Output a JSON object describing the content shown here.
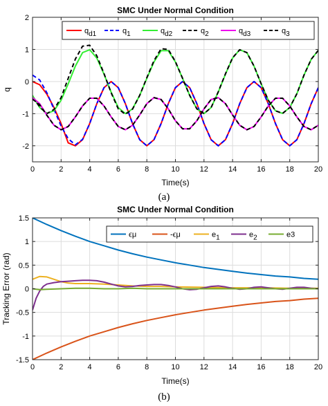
{
  "chart_data": [
    {
      "type": "line",
      "caption": "(a)",
      "title": "SMC Under Normal Condition",
      "xlabel": "Time(s)",
      "ylabel": "q",
      "xlim": [
        0,
        20
      ],
      "ylim": [
        -2.5,
        2
      ],
      "xticks": [
        0,
        2,
        4,
        6,
        8,
        10,
        12,
        14,
        16,
        18,
        20
      ],
      "yticks": [
        -2,
        -1,
        0,
        1,
        2
      ],
      "grid": true,
      "legend_position": "top, single row",
      "series": [
        {
          "name": "q",
          "subscript": "d1",
          "color": "#ff0000",
          "style": "solid",
          "x": [
            0,
            0.5,
            1,
            1.5,
            2,
            2.5,
            3,
            3.5,
            4,
            4.5,
            5,
            5.5,
            6,
            6.5,
            7,
            7.5,
            8,
            8.5,
            9,
            9.5,
            10,
            10.5,
            11,
            11.5,
            12,
            12.5,
            13,
            13.5,
            14,
            14.5,
            15,
            15.5,
            16,
            16.5,
            17,
            17.5,
            18,
            18.5,
            19,
            19.5,
            20
          ],
          "y": [
            0,
            -0.1,
            -0.39,
            -0.81,
            -1.31,
            -1.91,
            -2.0,
            -1.81,
            -1.31,
            -0.69,
            -0.19,
            0.0,
            -0.19,
            -0.69,
            -1.31,
            -1.81,
            -2.0,
            -1.81,
            -1.31,
            -0.69,
            -0.19,
            0.0,
            -0.19,
            -0.69,
            -1.31,
            -1.81,
            -2.0,
            -1.81,
            -1.31,
            -0.69,
            -0.19,
            0.0,
            -0.19,
            -0.69,
            -1.31,
            -1.81,
            -2.0,
            -1.81,
            -1.31,
            -0.69,
            -0.19
          ]
        },
        {
          "name": "q",
          "subscript": "1",
          "color": "#0000ff",
          "style": "dashed",
          "x": [
            0,
            0.5,
            1,
            1.5,
            2,
            2.5,
            3,
            3.5,
            4,
            4.5,
            5,
            5.5,
            6,
            6.5,
            7,
            7.5,
            8,
            8.5,
            9,
            9.5,
            10,
            10.5,
            11,
            11.5,
            12,
            12.5,
            13,
            13.5,
            14,
            14.5,
            15,
            15.5,
            16,
            16.5,
            17,
            17.5,
            18,
            18.5,
            19,
            19.5,
            20
          ],
          "y": [
            0.2,
            0.05,
            -0.35,
            -0.86,
            -1.39,
            -1.78,
            -1.97,
            -1.8,
            -1.31,
            -0.69,
            -0.19,
            0.0,
            -0.19,
            -0.69,
            -1.31,
            -1.81,
            -2.0,
            -1.81,
            -1.31,
            -0.69,
            -0.19,
            0.0,
            -0.19,
            -0.69,
            -1.31,
            -1.81,
            -2.0,
            -1.81,
            -1.31,
            -0.69,
            -0.19,
            0.0,
            -0.19,
            -0.69,
            -1.31,
            -1.81,
            -2.0,
            -1.81,
            -1.31,
            -0.69,
            -0.19
          ]
        },
        {
          "name": "q",
          "subscript": "d2",
          "color": "#33ee33",
          "style": "solid",
          "x": [
            0,
            0.5,
            1,
            1.5,
            2,
            2.5,
            3,
            3.5,
            4,
            4.5,
            5,
            5.5,
            6,
            6.5,
            7,
            7.5,
            8,
            8.5,
            9,
            9.5,
            10,
            10.5,
            11,
            11.5,
            12,
            12.5,
            13,
            13.5,
            14,
            14.5,
            15,
            15.5,
            16,
            16.5,
            17,
            17.5,
            18,
            18.5,
            19,
            19.5,
            20
          ],
          "y": [
            -0.43,
            -0.81,
            -0.99,
            -0.91,
            -0.58,
            -0.07,
            0.48,
            0.9,
            0.99,
            0.73,
            0.23,
            -0.33,
            -0.81,
            -1.0,
            -0.85,
            -0.43,
            0.1,
            0.61,
            0.96,
            0.96,
            0.61,
            0.1,
            -0.43,
            -0.85,
            -1.0,
            -0.81,
            -0.33,
            0.23,
            0.73,
            0.99,
            0.9,
            0.48,
            -0.07,
            -0.58,
            -0.91,
            -0.99,
            -0.81,
            -0.38,
            0.2,
            0.69,
            0.97
          ]
        },
        {
          "name": "q",
          "subscript": "2",
          "color": "#000000",
          "style": "dashed",
          "x": [
            0,
            0.5,
            1,
            1.5,
            2,
            2.5,
            3,
            3.5,
            4,
            4.5,
            5,
            5.5,
            6,
            6.5,
            7,
            7.5,
            8,
            8.5,
            9,
            9.5,
            10,
            10.5,
            11,
            11.5,
            12,
            12.5,
            13,
            13.5,
            14,
            14.5,
            15,
            15.5,
            16,
            16.5,
            17,
            17.5,
            18,
            18.5,
            19,
            19.5,
            20
          ],
          "y": [
            -0.5,
            -0.78,
            -1.0,
            -0.87,
            -0.5,
            0.1,
            0.7,
            1.1,
            1.13,
            0.8,
            0.25,
            -0.35,
            -0.85,
            -1.02,
            -0.86,
            -0.43,
            0.12,
            0.65,
            1.02,
            1.0,
            0.62,
            0.1,
            -0.43,
            -0.85,
            -1.0,
            -0.81,
            -0.32,
            0.24,
            0.74,
            0.99,
            0.9,
            0.48,
            -0.07,
            -0.58,
            -0.91,
            -0.99,
            -0.81,
            -0.38,
            0.2,
            0.69,
            0.97
          ]
        },
        {
          "name": "q",
          "subscript": "d3",
          "color": "#ee00ee",
          "style": "solid",
          "x": [
            0,
            0.5,
            1,
            1.5,
            2,
            2.5,
            3,
            3.5,
            4,
            4.5,
            5,
            5.5,
            6,
            6.5,
            7,
            7.5,
            8,
            8.5,
            9,
            9.5,
            10,
            10.5,
            11,
            11.5,
            12,
            12.5,
            13,
            13.5,
            14,
            14.5,
            15,
            15.5,
            16,
            16.5,
            17,
            17.5,
            18,
            18.5,
            19,
            19.5,
            20
          ],
          "y": [
            -0.5,
            -0.69,
            -1.04,
            -1.36,
            -1.5,
            -1.4,
            -1.1,
            -0.76,
            -0.52,
            -0.52,
            -0.76,
            -1.1,
            -1.4,
            -1.5,
            -1.36,
            -1.04,
            -0.69,
            -0.5,
            -0.56,
            -0.85,
            -1.22,
            -1.47,
            -1.47,
            -1.22,
            -0.85,
            -0.56,
            -0.5,
            -0.69,
            -1.04,
            -1.36,
            -1.5,
            -1.4,
            -1.1,
            -0.76,
            -0.52,
            -0.52,
            -0.76,
            -1.1,
            -1.4,
            -1.5,
            -1.36
          ]
        },
        {
          "name": "q",
          "subscript": "3",
          "color": "#000000",
          "style": "dashed",
          "x": [
            0,
            0.5,
            1,
            1.5,
            2,
            2.5,
            3,
            3.5,
            4,
            4.5,
            5,
            5.5,
            6,
            6.5,
            7,
            7.5,
            8,
            8.5,
            9,
            9.5,
            10,
            10.5,
            11,
            11.5,
            12,
            12.5,
            13,
            13.5,
            14,
            14.5,
            15,
            15.5,
            16,
            16.5,
            17,
            17.5,
            18,
            18.5,
            19,
            19.5,
            20
          ],
          "y": [
            -0.55,
            -0.72,
            -1.05,
            -1.36,
            -1.5,
            -1.4,
            -1.1,
            -0.76,
            -0.52,
            -0.52,
            -0.76,
            -1.1,
            -1.4,
            -1.5,
            -1.36,
            -1.04,
            -0.69,
            -0.5,
            -0.56,
            -0.85,
            -1.22,
            -1.47,
            -1.47,
            -1.22,
            -0.85,
            -0.56,
            -0.5,
            -0.69,
            -1.04,
            -1.36,
            -1.5,
            -1.4,
            -1.1,
            -0.76,
            -0.52,
            -0.52,
            -0.76,
            -1.1,
            -1.4,
            -1.5,
            -1.36
          ]
        }
      ]
    },
    {
      "type": "line",
      "caption": "(b)",
      "title": "SMC Under Normal Condition",
      "xlabel": "Time(s)",
      "ylabel": "Tracking Error (rad)",
      "xlim": [
        0,
        20
      ],
      "ylim": [
        -1.5,
        1.5
      ],
      "xticks": [
        0,
        2,
        4,
        6,
        8,
        10,
        12,
        14,
        16,
        18,
        20
      ],
      "yticks": [
        -1.5,
        -1,
        -0.5,
        0,
        0.5,
        1,
        1.5
      ],
      "ytick_labels": [
        "-1.5",
        "-1",
        "-0.5",
        "0",
        "0.5",
        "1",
        "1.5"
      ],
      "grid": true,
      "legend_position": "top-right, single row",
      "series": [
        {
          "name": "ϵμ",
          "subscript": "",
          "color": "#0072bd",
          "style": "solid",
          "x": [
            0,
            1,
            2,
            3,
            4,
            5,
            6,
            7,
            8,
            9,
            10,
            11,
            12,
            13,
            14,
            15,
            16,
            17,
            18,
            19,
            20
          ],
          "y": [
            1.5,
            1.36,
            1.23,
            1.11,
            1.0,
            0.91,
            0.82,
            0.74,
            0.67,
            0.61,
            0.55,
            0.5,
            0.45,
            0.41,
            0.37,
            0.33,
            0.3,
            0.27,
            0.25,
            0.22,
            0.2
          ]
        },
        {
          "name": "-ϵμ",
          "subscript": "",
          "color": "#d95319",
          "style": "solid",
          "x": [
            0,
            1,
            2,
            3,
            4,
            5,
            6,
            7,
            8,
            9,
            10,
            11,
            12,
            13,
            14,
            15,
            16,
            17,
            18,
            19,
            20
          ],
          "y": [
            -1.5,
            -1.36,
            -1.23,
            -1.11,
            -1.0,
            -0.91,
            -0.82,
            -0.74,
            -0.67,
            -0.61,
            -0.55,
            -0.5,
            -0.45,
            -0.41,
            -0.37,
            -0.33,
            -0.3,
            -0.27,
            -0.25,
            -0.22,
            -0.2
          ]
        },
        {
          "name": "e",
          "subscript": "1",
          "color": "#edb120",
          "style": "solid",
          "x": [
            0,
            0.5,
            1,
            1.5,
            2,
            2.5,
            3,
            4,
            5,
            6,
            7,
            8,
            9,
            10,
            12,
            14,
            16,
            18,
            20
          ],
          "y": [
            0.2,
            0.26,
            0.25,
            0.2,
            0.15,
            0.12,
            0.11,
            0.11,
            0.1,
            0.08,
            0.06,
            0.05,
            0.05,
            0.04,
            0.03,
            0.02,
            0.02,
            0.01,
            0.01
          ]
        },
        {
          "name": "e",
          "subscript": "2",
          "color": "#7e2f8e",
          "style": "solid",
          "x": [
            0,
            0.25,
            0.5,
            0.75,
            1,
            1.5,
            2,
            2.5,
            3,
            3.5,
            4,
            4.5,
            5,
            5.5,
            6,
            6.5,
            7,
            7.5,
            8,
            8.5,
            9,
            9.5,
            10,
            10.5,
            11,
            11.5,
            12,
            12.5,
            13,
            13.5,
            14,
            14.5,
            15,
            15.5,
            16,
            16.5,
            17,
            17.5,
            18,
            18.5,
            19,
            19.5,
            20
          ],
          "y": [
            -0.45,
            -0.2,
            -0.05,
            0.05,
            0.1,
            0.13,
            0.15,
            0.16,
            0.17,
            0.18,
            0.18,
            0.17,
            0.14,
            0.1,
            0.06,
            0.04,
            0.05,
            0.07,
            0.08,
            0.09,
            0.09,
            0.07,
            0.04,
            0.0,
            -0.02,
            -0.01,
            0.02,
            0.05,
            0.06,
            0.04,
            0.01,
            -0.01,
            0.0,
            0.03,
            0.04,
            0.02,
            0.0,
            -0.01,
            0.01,
            0.03,
            0.03,
            0.01,
            0.0
          ]
        },
        {
          "name": "e3",
          "subscript": "",
          "color": "#77ac30",
          "style": "solid",
          "x": [
            0,
            0.5,
            1,
            2,
            3,
            4,
            5,
            6,
            7,
            8,
            9,
            10,
            11,
            12,
            13,
            14,
            15,
            16,
            17,
            18,
            19,
            20
          ],
          "y": [
            0.0,
            -0.02,
            -0.01,
            0.0,
            0.01,
            0.01,
            0.0,
            0.0,
            0.01,
            0.0,
            0.0,
            0.0,
            0.0,
            0.0,
            0.0,
            0.0,
            0.0,
            0.0,
            0.0,
            0.0,
            0.0,
            0.0
          ]
        }
      ]
    }
  ]
}
